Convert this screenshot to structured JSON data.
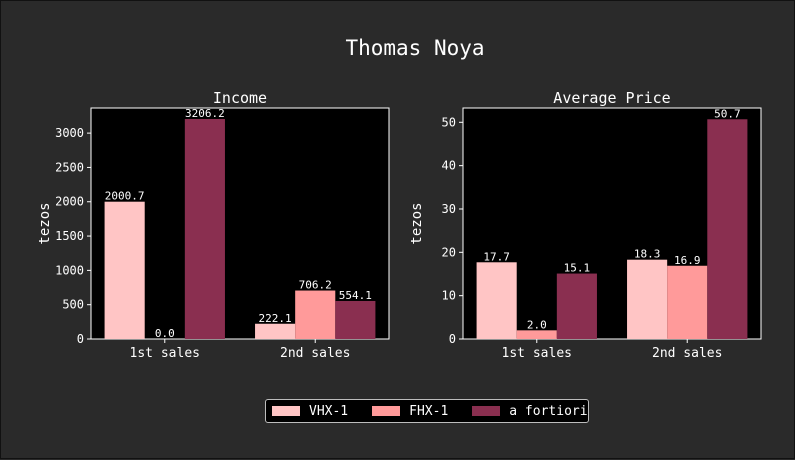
{
  "figure_title": "Thomas Noya",
  "colors": {
    "background": "#2a2a2a",
    "plot_bg": "#000000",
    "series": [
      "#ffc5c5",
      "#ff9a9a",
      "#8a2f50"
    ],
    "text": "#ffffff"
  },
  "legend": {
    "placement": "bottom-center",
    "entries": [
      "VHX-1",
      "FHX-1",
      "a fortiori"
    ]
  },
  "chart_data": [
    {
      "type": "bar",
      "title": "Income",
      "xlabel": "",
      "ylabel": "tezos",
      "categories": [
        "1st sales",
        "2nd sales"
      ],
      "ylim": [
        0,
        3366
      ],
      "yticks": [
        0,
        500,
        1000,
        1500,
        2000,
        2500,
        3000
      ],
      "grid": false,
      "series": [
        {
          "name": "VHX-1",
          "values": [
            2000.7,
            222.1
          ],
          "labels": [
            "2000.7",
            "222.1"
          ]
        },
        {
          "name": "FHX-1",
          "values": [
            0.0,
            706.2
          ],
          "labels": [
            "0.0",
            "706.2"
          ]
        },
        {
          "name": "a fortiori",
          "values": [
            3206.2,
            554.1
          ],
          "labels": [
            "3206.2",
            "554.1"
          ]
        }
      ]
    },
    {
      "type": "bar",
      "title": "Average Price",
      "xlabel": "",
      "ylabel": "tezos",
      "categories": [
        "1st sales",
        "2nd sales"
      ],
      "ylim": [
        0,
        53.3
      ],
      "yticks": [
        0,
        10,
        20,
        30,
        40,
        50
      ],
      "grid": false,
      "series": [
        {
          "name": "VHX-1",
          "values": [
            17.7,
            18.3
          ],
          "labels": [
            "17.7",
            "18.3"
          ]
        },
        {
          "name": "FHX-1",
          "values": [
            2.0,
            16.9
          ],
          "labels": [
            "2.0",
            "16.9"
          ]
        },
        {
          "name": "a fortiori",
          "values": [
            15.1,
            50.7
          ],
          "labels": [
            "15.1",
            "50.7"
          ]
        }
      ]
    }
  ]
}
